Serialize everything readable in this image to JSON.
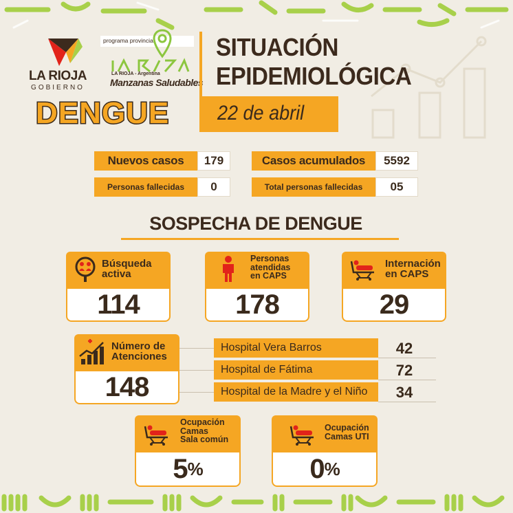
{
  "brand": {
    "rioja_name": "LA RIOJA",
    "rioja_sub": "GOBIERNO",
    "program_label": "programa provincial",
    "mz_rioja": "LA RIOJA - Argentina",
    "mz_name": "Manzanas Saludables",
    "mz_wordmark": "La Rioja"
  },
  "header": {
    "disease": "DENGUE",
    "title_line1": "SITUACIÓN",
    "title_line2": "EPIDEMIOLÓGICA",
    "date": "22 de abril"
  },
  "stats": {
    "nuevos_casos": {
      "label": "Nuevos casos",
      "value": "179"
    },
    "casos_acumulados": {
      "label": "Casos acumulados",
      "value": "5592"
    },
    "personas_fallecidas": {
      "label": "Personas fallecidas",
      "value": "0"
    },
    "total_fallecidas": {
      "label": "Total personas fallecidas",
      "value": "05"
    }
  },
  "section_title": "SOSPECHA DE DENGUE",
  "cards": {
    "busqueda": {
      "title_l1": "Búsqueda",
      "title_l2": "activa",
      "value": "114",
      "icon": "search-people-icon"
    },
    "caps": {
      "title_l1": "Personas",
      "title_l2": "atendidas",
      "title_l3": "en CAPS",
      "value": "178",
      "icon": "person-icon"
    },
    "internacion": {
      "title_l1": "Internación",
      "title_l2": "en CAPS",
      "value": "29",
      "icon": "hospital-bed-icon"
    },
    "atenciones": {
      "title_l1": "Número de",
      "title_l2": "Atenciones",
      "value": "148",
      "icon": "growth-chart-icon"
    },
    "ocup_comun": {
      "title_l1": "Ocupación",
      "title_l2": "Camas",
      "title_l3": "Sala común",
      "value": "5",
      "unit": "%",
      "icon": "hospital-bed-icon"
    },
    "ocup_uti": {
      "title_l1": "Ocupación",
      "title_l2": "Camas UTI",
      "value": "0",
      "unit": "%",
      "icon": "hospital-bed-icon"
    }
  },
  "hospitals": [
    {
      "name": "Hospital Vera Barros",
      "value": "42"
    },
    {
      "name": "Hospital de Fátima",
      "value": "72"
    },
    {
      "name": "Hospital de la Madre y el Niño",
      "value": "34"
    }
  ],
  "colors": {
    "background": "#f1ede4",
    "accent": "#f5a623",
    "text": "#3a2a1c",
    "icon_red": "#e2231a",
    "deco_green": "#a8d04a"
  }
}
